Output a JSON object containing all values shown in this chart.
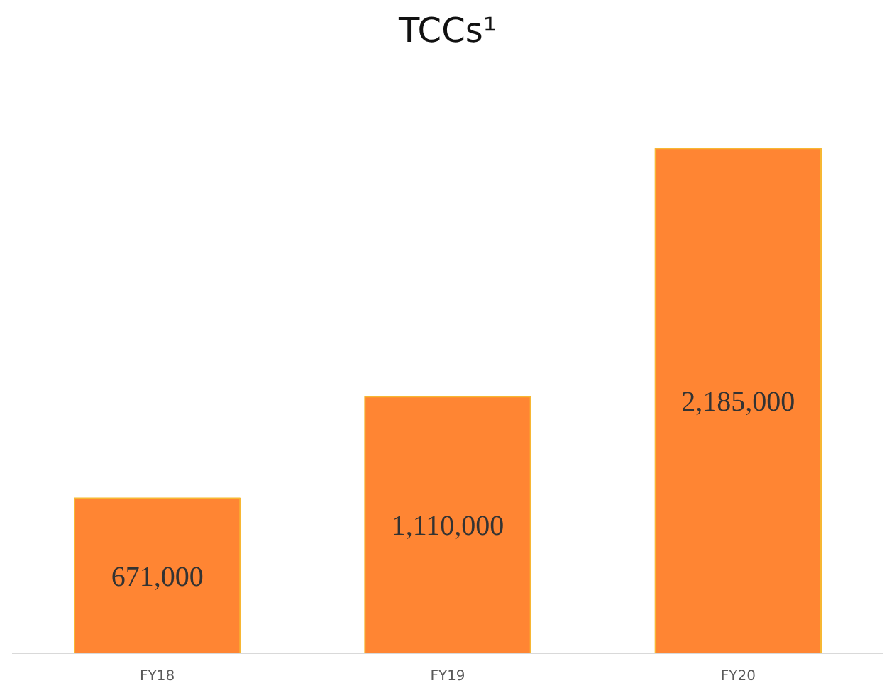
{
  "chart_data": {
    "type": "bar",
    "title": "TCCs¹",
    "categories": [
      "FY18",
      "FY19",
      "FY20"
    ],
    "values": [
      671000,
      1110000,
      2185000
    ],
    "color": "#ff8533",
    "data_labels": true,
    "value_labels": [
      "671,000",
      "1,110,000",
      "2,185,000"
    ]
  }
}
